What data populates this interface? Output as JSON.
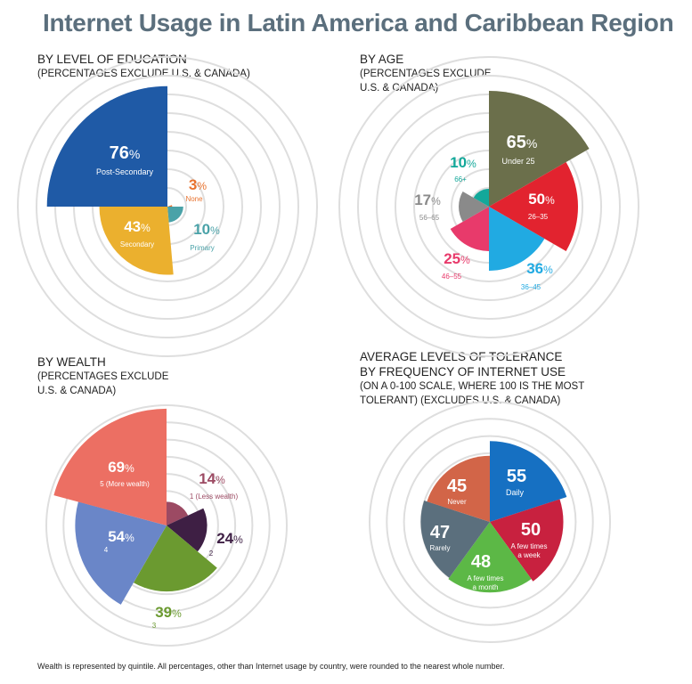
{
  "title": "Internet Usage in Latin America and Caribbean Region",
  "footnote": "Wealth is represented by quintile. All percentages, other than Internet usage by country, were rounded to the nearest whole number.",
  "chart_data": [
    {
      "type": "polar-area",
      "heading": "BY LEVEL OF EDUCATION",
      "subheading": "(PERCENTAGES EXCLUDE U.S. & CANADA)",
      "unit": "%",
      "rmax": 100,
      "slices": [
        {
          "label": "Post-Secondary",
          "value": 76,
          "color": "#1f5aa6"
        },
        {
          "label": "None",
          "value": 3,
          "color": "#e8732f"
        },
        {
          "label": "Primary",
          "value": 10,
          "color": "#4aa2a8"
        },
        {
          "label": "Secondary",
          "value": 43,
          "color": "#ebb02e"
        }
      ]
    },
    {
      "type": "polar-area",
      "heading": "BY AGE",
      "subheading": "(PERCENTAGES EXCLUDE U.S. & CANADA)",
      "unit": "%",
      "rmax": 100,
      "slices": [
        {
          "label": "Under 25",
          "value": 65,
          "color": "#6b6f4b"
        },
        {
          "label": "26–35",
          "value": 50,
          "color": "#e2232f"
        },
        {
          "label": "36–45",
          "value": 36,
          "color": "#21aae2"
        },
        {
          "label": "46–55",
          "value": 25,
          "color": "#e83a6b"
        },
        {
          "label": "56–65",
          "value": 17,
          "color": "#8a8a8a"
        },
        {
          "label": "66+",
          "value": 10,
          "color": "#13a89a"
        }
      ]
    },
    {
      "type": "polar-area",
      "heading": "BY WEALTH",
      "subheading": "(PERCENTAGES EXCLUDE U.S. & CANADA)",
      "unit": "%",
      "rmax": 100,
      "slices": [
        {
          "label": "1 (Less wealth)",
          "value": 14,
          "color": "#9c4a63"
        },
        {
          "label": "2",
          "value": 24,
          "color": "#3e1f44"
        },
        {
          "label": "3",
          "value": 39,
          "color": "#6b9a30"
        },
        {
          "label": "4",
          "value": 54,
          "color": "#6a86c8"
        },
        {
          "label": "5 (More wealth)",
          "value": 69,
          "color": "#ec6f63"
        }
      ]
    },
    {
      "type": "polar-area",
      "heading": "AVERAGE LEVELS OF TOLERANCE BY FREQUENCY OF INTERNET USE",
      "subheading": "(ON A 0-100 SCALE, WHERE 100 IS THE MOST TOLERANT) (EXCLUDES U.S. & CANADA)",
      "unit": "",
      "rmax": 100,
      "slices": [
        {
          "label": "Daily",
          "value": 55,
          "color": "#1670c2"
        },
        {
          "label": "A few times a week",
          "value": 50,
          "color": "#c8213f"
        },
        {
          "label": "A few times a month",
          "value": 48,
          "color": "#5cb846"
        },
        {
          "label": "Rarely",
          "value": 47,
          "color": "#5b6f7d"
        },
        {
          "label": "Never",
          "value": 45,
          "color": "#d26548"
        }
      ]
    }
  ]
}
